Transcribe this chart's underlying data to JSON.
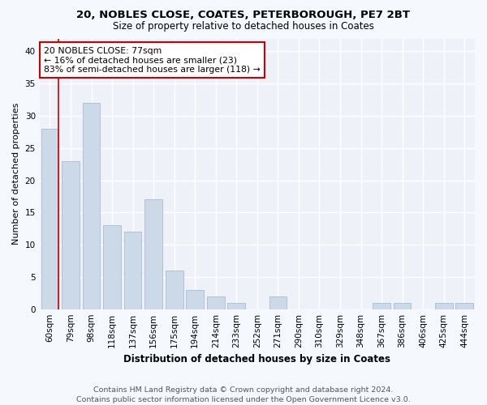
{
  "title1": "20, NOBLES CLOSE, COATES, PETERBOROUGH, PE7 2BT",
  "title2": "Size of property relative to detached houses in Coates",
  "xlabel": "Distribution of detached houses by size in Coates",
  "ylabel": "Number of detached properties",
  "categories": [
    "60sqm",
    "79sqm",
    "98sqm",
    "118sqm",
    "137sqm",
    "156sqm",
    "175sqm",
    "194sqm",
    "214sqm",
    "233sqm",
    "252sqm",
    "271sqm",
    "290sqm",
    "310sqm",
    "329sqm",
    "348sqm",
    "367sqm",
    "386sqm",
    "406sqm",
    "425sqm",
    "444sqm"
  ],
  "values": [
    28,
    23,
    32,
    13,
    12,
    17,
    6,
    3,
    2,
    1,
    0,
    2,
    0,
    0,
    0,
    0,
    1,
    1,
    0,
    1,
    1
  ],
  "bar_color": "#ccd9e8",
  "bar_edge_color": "#aabbd0",
  "highlight_color": "#cc0000",
  "annotation_text": "20 NOBLES CLOSE: 77sqm\n← 16% of detached houses are smaller (23)\n83% of semi-detached houses are larger (118) →",
  "annotation_box_color": "#ffffff",
  "annotation_box_edge_color": "#cc0000",
  "ylim": [
    0,
    42
  ],
  "yticks": [
    0,
    5,
    10,
    15,
    20,
    25,
    30,
    35,
    40
  ],
  "footer_text": "Contains HM Land Registry data © Crown copyright and database right 2024.\nContains public sector information licensed under the Open Government Licence v3.0.",
  "background_color": "#f5f8fc",
  "plot_background_color": "#eef2f8",
  "grid_color": "#ffffff",
  "title_fontsize": 9.5,
  "subtitle_fontsize": 8.5,
  "xlabel_fontsize": 8.5,
  "ylabel_fontsize": 8,
  "tick_fontsize": 7.5,
  "annotation_fontsize": 7.8,
  "footer_fontsize": 6.8
}
